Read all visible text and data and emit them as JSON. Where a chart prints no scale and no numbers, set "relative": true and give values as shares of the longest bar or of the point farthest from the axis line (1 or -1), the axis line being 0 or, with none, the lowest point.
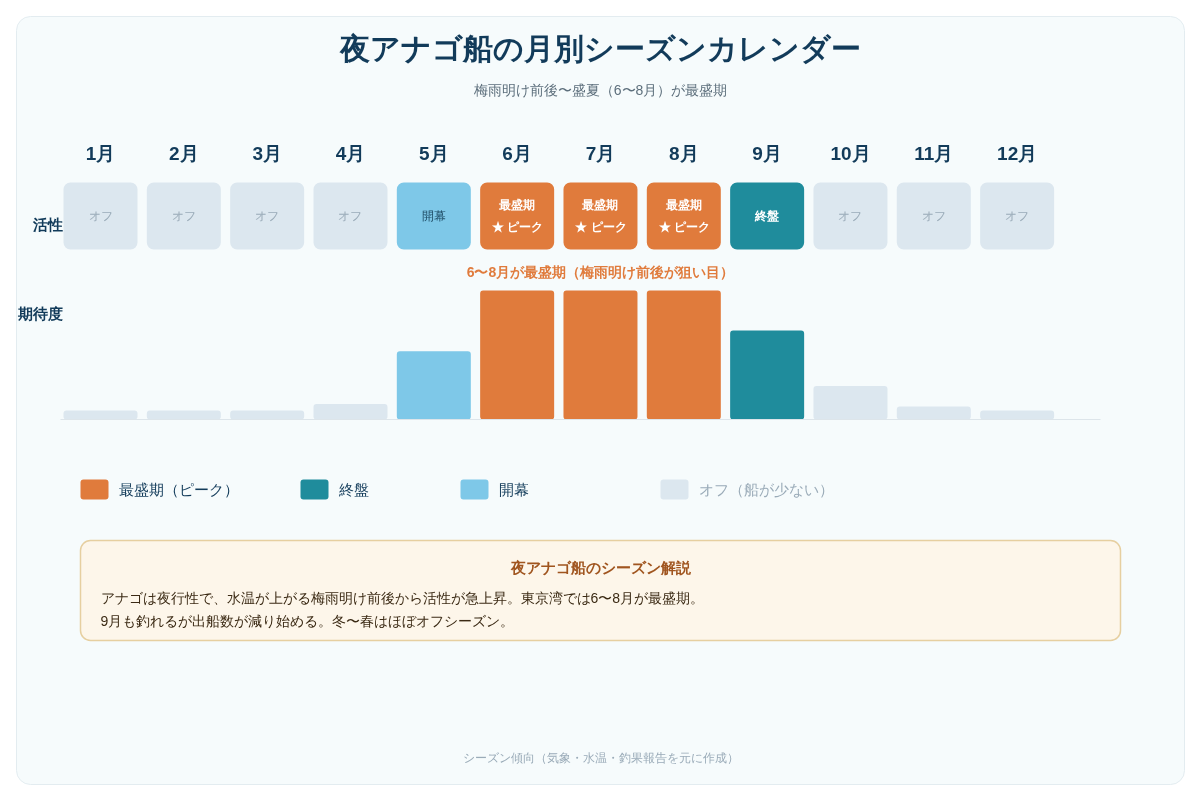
{
  "chart_data": {
    "type": "bar",
    "relative": true,
    "legend": "bottom",
    "title": "夜アナゴ船の月別シーズンカレンダー",
    "subtitle": "梅雨明け前後〜盛夏（6〜8月）が最盛期",
    "ylabel": "期待度",
    "categories": [
      "1月",
      "2月",
      "3月",
      "4月",
      "5月",
      "6月",
      "7月",
      "8月",
      "9月",
      "10月",
      "11月",
      "12月"
    ],
    "series": [
      {
        "name": "最盛期（ピーク）",
        "color": "#e07b3c",
        "values": [
          null,
          null,
          null,
          null,
          null,
          1,
          1,
          1,
          null,
          null,
          null,
          null
        ]
      },
      {
        "name": "終盤",
        "color": "#1f8c9c",
        "values": [
          null,
          null,
          null,
          null,
          null,
          null,
          null,
          null,
          0.69,
          null,
          null,
          null
        ]
      },
      {
        "name": "開幕",
        "color": "#7ec8e8",
        "values": [
          null,
          null,
          null,
          null,
          0.53,
          null,
          null,
          null,
          null,
          null,
          null,
          null
        ]
      },
      {
        "name": "オフ（船が少ない）",
        "color": "#dce7ef",
        "values": [
          0.07,
          0.07,
          0.07,
          0.12,
          null,
          null,
          null,
          null,
          null,
          0.26,
          0.1,
          0.07
        ]
      }
    ],
    "annotations": [
      "活性",
      "オフ",
      "オフ",
      "オフ",
      "オフ",
      "開幕",
      "最盛期\n★ ピーク",
      "最盛期\n★ ピーク",
      "最盛期\n★ ピーク",
      "終盤",
      "オフ",
      "オフ",
      "オフ",
      "6〜8月が最盛期（梅雨明け前後が狙い目）",
      "夜アナゴ船のシーズン解説",
      "アナゴは夜行性で、水温が上がる梅雨明け前後から活性が急上昇。東京湾では6〜8月が最盛期。",
      "9月も釣れるが出船数が減り始める。冬〜春はほぼオフシーズン。",
      "シーズン傾向（気象・水温・釣果報告を元に作成）"
    ]
  }
}
